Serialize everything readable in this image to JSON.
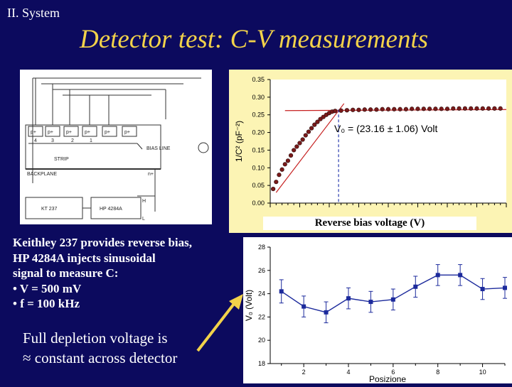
{
  "header": {
    "section": "II. System",
    "title": "Detector test: C-V measurements"
  },
  "schematic": {
    "strips": [
      "p+",
      "p+",
      "p+",
      "p+",
      "p+",
      "p+"
    ],
    "strip_numbers": [
      "4",
      "3",
      "2",
      "1"
    ],
    "bias_line": "BIAS LINE",
    "strip_label": "STRIP",
    "backplane": "BACKPLANE",
    "n_plus": "n+",
    "h_label": "H",
    "l_label": "L",
    "instrument_left": "KT 237",
    "instrument_right": "HP 4284A"
  },
  "cv_chart_xlabel": "Reverse bias voltage (V)",
  "description": {
    "lines": [
      "Keithley 237 provides reverse bias,",
      "HP 4284A injects sinusoidal",
      "signal to measure C:",
      "• V = 500 mV",
      "• f = 100 kHz"
    ]
  },
  "conclusion": {
    "line1": "Full depletion voltage is",
    "line2": "≈ constant across detector"
  },
  "chart_data": [
    {
      "type": "scatter",
      "ylabel": "1/C² (pF⁻²)",
      "xlabel": "Reverse bias voltage (V)",
      "ylim": [
        0,
        0.35
      ],
      "yticks": [
        "0.00",
        "0.05",
        "0.10",
        "0.15",
        "0.20",
        "0.25",
        "0.30",
        "0.35"
      ],
      "xlim": [
        0,
        80
      ],
      "annotation": "V₀ = (23.16 ± 1.06) Volt",
      "fit_knee_x": 23.16,
      "series": [
        {
          "points": [
            [
              1,
              0.04
            ],
            [
              2,
              0.06
            ],
            [
              3,
              0.08
            ],
            [
              4,
              0.095
            ],
            [
              5,
              0.11
            ],
            [
              6,
              0.12
            ],
            [
              7,
              0.135
            ],
            [
              8,
              0.15
            ],
            [
              9,
              0.16
            ],
            [
              10,
              0.17
            ],
            [
              11,
              0.18
            ],
            [
              12,
              0.192
            ],
            [
              13,
              0.202
            ],
            [
              14,
              0.212
            ],
            [
              15,
              0.222
            ],
            [
              16,
              0.23
            ],
            [
              17,
              0.238
            ],
            [
              18,
              0.244
            ],
            [
              19,
              0.25
            ],
            [
              20,
              0.255
            ],
            [
              21,
              0.259
            ],
            [
              22,
              0.261
            ],
            [
              24,
              0.262
            ],
            [
              26,
              0.263
            ],
            [
              28,
              0.264
            ],
            [
              30,
              0.264
            ],
            [
              32,
              0.265
            ],
            [
              34,
              0.265
            ],
            [
              36,
              0.265
            ],
            [
              38,
              0.266
            ],
            [
              40,
              0.266
            ],
            [
              42,
              0.266
            ],
            [
              44,
              0.266
            ],
            [
              46,
              0.266
            ],
            [
              48,
              0.267
            ],
            [
              50,
              0.267
            ],
            [
              52,
              0.267
            ],
            [
              54,
              0.267
            ],
            [
              56,
              0.267
            ],
            [
              58,
              0.267
            ],
            [
              60,
              0.267
            ],
            [
              62,
              0.268
            ],
            [
              64,
              0.268
            ],
            [
              66,
              0.268
            ],
            [
              68,
              0.268
            ],
            [
              70,
              0.268
            ],
            [
              72,
              0.268
            ],
            [
              74,
              0.268
            ],
            [
              76,
              0.268
            ],
            [
              78,
              0.268
            ]
          ]
        }
      ]
    },
    {
      "type": "line",
      "xlabel": "Posizione",
      "ylabel": "V₀ (Volt)",
      "xlim": [
        0.5,
        11
      ],
      "ylim": [
        18,
        28
      ],
      "xticks": [
        "2",
        "4",
        "6",
        "8",
        "10"
      ],
      "yticks": [
        "18",
        "20",
        "22",
        "24",
        "26",
        "28"
      ],
      "series": [
        {
          "x": [
            1,
            2,
            3,
            4,
            5,
            6,
            7,
            8,
            9,
            10,
            11
          ],
          "y": [
            24.2,
            22.9,
            22.4,
            23.6,
            23.3,
            23.5,
            24.6,
            25.6,
            25.6,
            24.4,
            24.5
          ],
          "err": [
            1.0,
            0.9,
            0.9,
            0.9,
            0.9,
            0.9,
            0.9,
            0.9,
            0.9,
            0.9,
            0.9
          ]
        }
      ]
    }
  ]
}
